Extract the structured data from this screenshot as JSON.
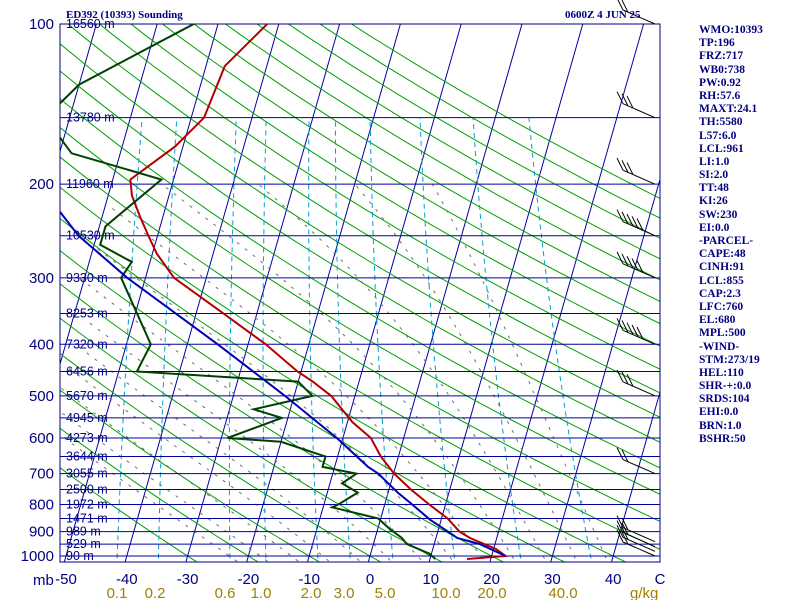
{
  "header": {
    "station": "ED392 (10393) Sounding",
    "time": "0600Z  4 JUN 25"
  },
  "stats": [
    "WMO:10393",
    "TP:196",
    "FRZ:717",
    "WB0:738",
    "PW:0.92",
    "RH:57.6",
    "MAXT:24.1",
    "TH:5580",
    "L57:6.0",
    "LCL:961",
    "LI:1.0",
    "SI:2.0",
    "TT:48",
    "KI:26",
    "SW:230",
    "EI:0.0",
    "-PARCEL-",
    "CAPE:48",
    "CINH:91",
    "LCL:855",
    "CAP:2.3",
    "LFC:760",
    "EL:680",
    "MPL:500",
    "-WIND-",
    "STM:273/19",
    "HEL:110",
    "SHR-+:0.0",
    "SRDS:104",
    "EHI:0.0",
    "BRN:1.0",
    "BSHR:50"
  ],
  "chart_data": {
    "type": "line",
    "ylabel": "mb",
    "xlabel": "g/kg",
    "pressure_ticks": [
      "100",
      "200",
      "300",
      "400",
      "500",
      "600",
      "700",
      "800",
      "900",
      "1000"
    ],
    "temp_ticks": [
      "-50",
      "-40",
      "-30",
      "-20",
      "-10",
      "0",
      "10",
      "20",
      "30",
      "40"
    ],
    "temp_unit": "C",
    "mixing_ratio_ticks": [
      "0.1",
      "0.2",
      "0.6",
      "1.0",
      "2.0",
      "3.0",
      "5.0",
      "10.0",
      "20.0",
      "40.0"
    ],
    "height_labels": [
      {
        "p": 100,
        "label": "16560 m"
      },
      {
        "p": 150,
        "label": "13780 m"
      },
      {
        "p": 200,
        "label": "11960 m"
      },
      {
        "p": 250,
        "label": "10530 m"
      },
      {
        "p": 300,
        "label": "9330 m"
      },
      {
        "p": 350,
        "label": "8253 m"
      },
      {
        "p": 400,
        "label": "7320 m"
      },
      {
        "p": 450,
        "label": "6456 m"
      },
      {
        "p": 500,
        "label": "5670 m"
      },
      {
        "p": 550,
        "label": "4945 m"
      },
      {
        "p": 600,
        "label": "4273 m"
      },
      {
        "p": 650,
        "label": "3644 m"
      },
      {
        "p": 700,
        "label": "3055 m"
      },
      {
        "p": 750,
        "label": "2500 m"
      },
      {
        "p": 800,
        "label": "1972 m"
      },
      {
        "p": 850,
        "label": "1471 m"
      },
      {
        "p": 900,
        "label": "989 m"
      },
      {
        "p": 950,
        "label": "529 m"
      },
      {
        "p": 1000,
        "label": "90 m"
      }
    ],
    "series": [
      {
        "key": "temperature",
        "color": "#b40000",
        "points": [
          [
            1013,
            16.1
          ],
          [
            1000,
            22.3
          ],
          [
            970,
            20.4
          ],
          [
            925,
            15.6
          ],
          [
            900,
            13.6
          ],
          [
            850,
            11.0
          ],
          [
            800,
            7.3
          ],
          [
            750,
            3.6
          ],
          [
            700,
            0.1
          ],
          [
            650,
            -2.9
          ],
          [
            600,
            -5.4
          ],
          [
            560,
            -9.2
          ],
          [
            500,
            -13.9
          ],
          [
            470,
            -17.6
          ],
          [
            450,
            -20.6
          ],
          [
            400,
            -27.1
          ],
          [
            350,
            -35.5
          ],
          [
            300,
            -45.3
          ],
          [
            270,
            -49.3
          ],
          [
            250,
            -51.5
          ],
          [
            230,
            -53.8
          ],
          [
            210,
            -56.1
          ],
          [
            196,
            -57.1
          ],
          [
            170,
            -51.3
          ],
          [
            150,
            -47.9
          ],
          [
            120,
            -46.9
          ],
          [
            100,
            -41.9
          ],
          [
            93,
            -40.2
          ]
        ]
      },
      {
        "key": "dewpoint",
        "color": "#004000",
        "points": [
          [
            1013,
            10.9
          ],
          [
            990,
            9.7
          ],
          [
            950,
            5.5
          ],
          [
            925,
            4.4
          ],
          [
            890,
            2.0
          ],
          [
            850,
            -0.4
          ],
          [
            810,
            -8.5
          ],
          [
            800,
            -7.6
          ],
          [
            760,
            -5.0
          ],
          [
            730,
            -8.0
          ],
          [
            700,
            -6.1
          ],
          [
            680,
            -12.0
          ],
          [
            650,
            -12.0
          ],
          [
            610,
            -20.0
          ],
          [
            600,
            -29.0
          ],
          [
            550,
            -21.0
          ],
          [
            530,
            -26.0
          ],
          [
            510,
            -20.0
          ],
          [
            500,
            -17.0
          ],
          [
            470,
            -20.0
          ],
          [
            450,
            -47.0
          ],
          [
            400,
            -46.0
          ],
          [
            300,
            -54.0
          ],
          [
            280,
            -53.0
          ],
          [
            260,
            -59.0
          ],
          [
            240,
            -59.0
          ],
          [
            196,
            -52.0
          ],
          [
            175,
            -68.0
          ],
          [
            150,
            -74.0
          ],
          [
            130,
            -70.0
          ],
          [
            100,
            -54.0
          ],
          [
            93,
            -51.7
          ]
        ]
      },
      {
        "key": "parcel",
        "color": "#0000b4",
        "points": [
          [
            1000,
            22.3
          ],
          [
            950,
            17.5
          ],
          [
            925,
            13.5
          ],
          [
            900,
            11.7
          ],
          [
            855,
            8.2
          ],
          [
            800,
            4.5
          ],
          [
            760,
            1.6
          ],
          [
            700,
            -2.5
          ],
          [
            680,
            -4.5
          ],
          [
            600,
            -11.0
          ],
          [
            500,
            -21.5
          ],
          [
            400,
            -35.0
          ],
          [
            300,
            -53.0
          ],
          [
            250,
            -63.0
          ],
          [
            200,
            -72.0
          ],
          [
            150,
            -82.0
          ],
          [
            120,
            -88.0
          ],
          [
            110,
            -89.0
          ]
        ]
      }
    ],
    "wind_barbs": [
      {
        "p": 1000,
        "speed": 15
      },
      {
        "p": 980,
        "speed": 15
      },
      {
        "p": 960,
        "speed": 15
      },
      {
        "p": 940,
        "speed": 20
      },
      {
        "p": 700,
        "speed": 20
      },
      {
        "p": 500,
        "speed": 25
      },
      {
        "p": 400,
        "speed": 60
      },
      {
        "p": 300,
        "speed": 55
      },
      {
        "p": 250,
        "speed": 45
      },
      {
        "p": 200,
        "speed": 25
      },
      {
        "p": 150,
        "speed": 30
      },
      {
        "p": 100,
        "speed": 20
      }
    ],
    "ylim": [
      1050,
      100
    ],
    "log_pressure": true,
    "skew_t": true,
    "grid": true
  }
}
